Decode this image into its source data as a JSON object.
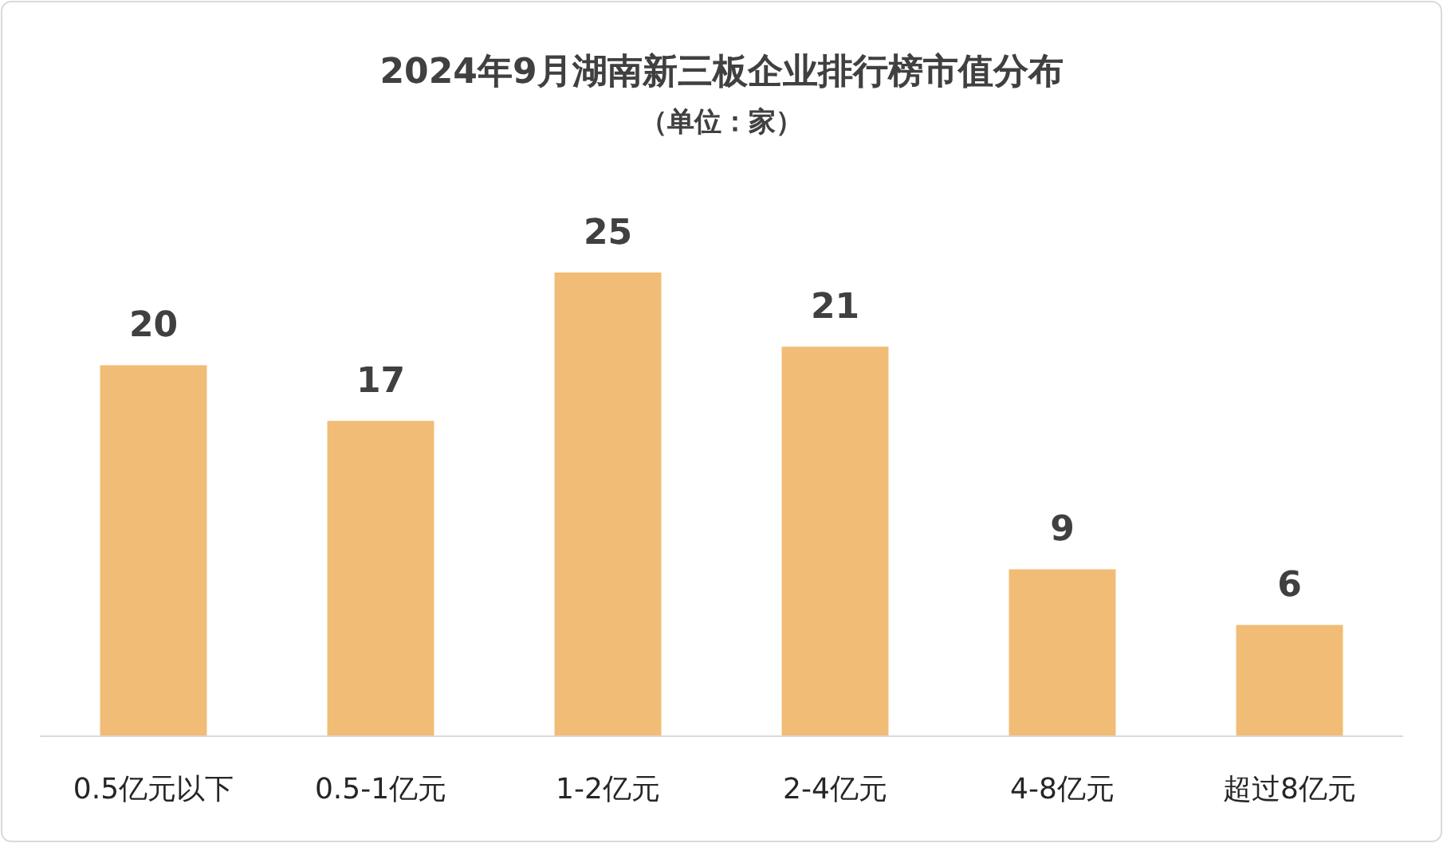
{
  "chart_data": {
    "type": "bar",
    "title": "2024年9月湖南新三板企业排行榜市值分布",
    "subtitle": "（单位：家）",
    "categories": [
      "0.5亿元以下",
      "0.5-1亿元",
      "1-2亿元",
      "2-4亿元",
      "4-8亿元",
      "超过8亿元"
    ],
    "values": [
      20,
      17,
      25,
      21,
      9,
      6
    ],
    "color": "#f1bc75",
    "data_labels": true
  }
}
